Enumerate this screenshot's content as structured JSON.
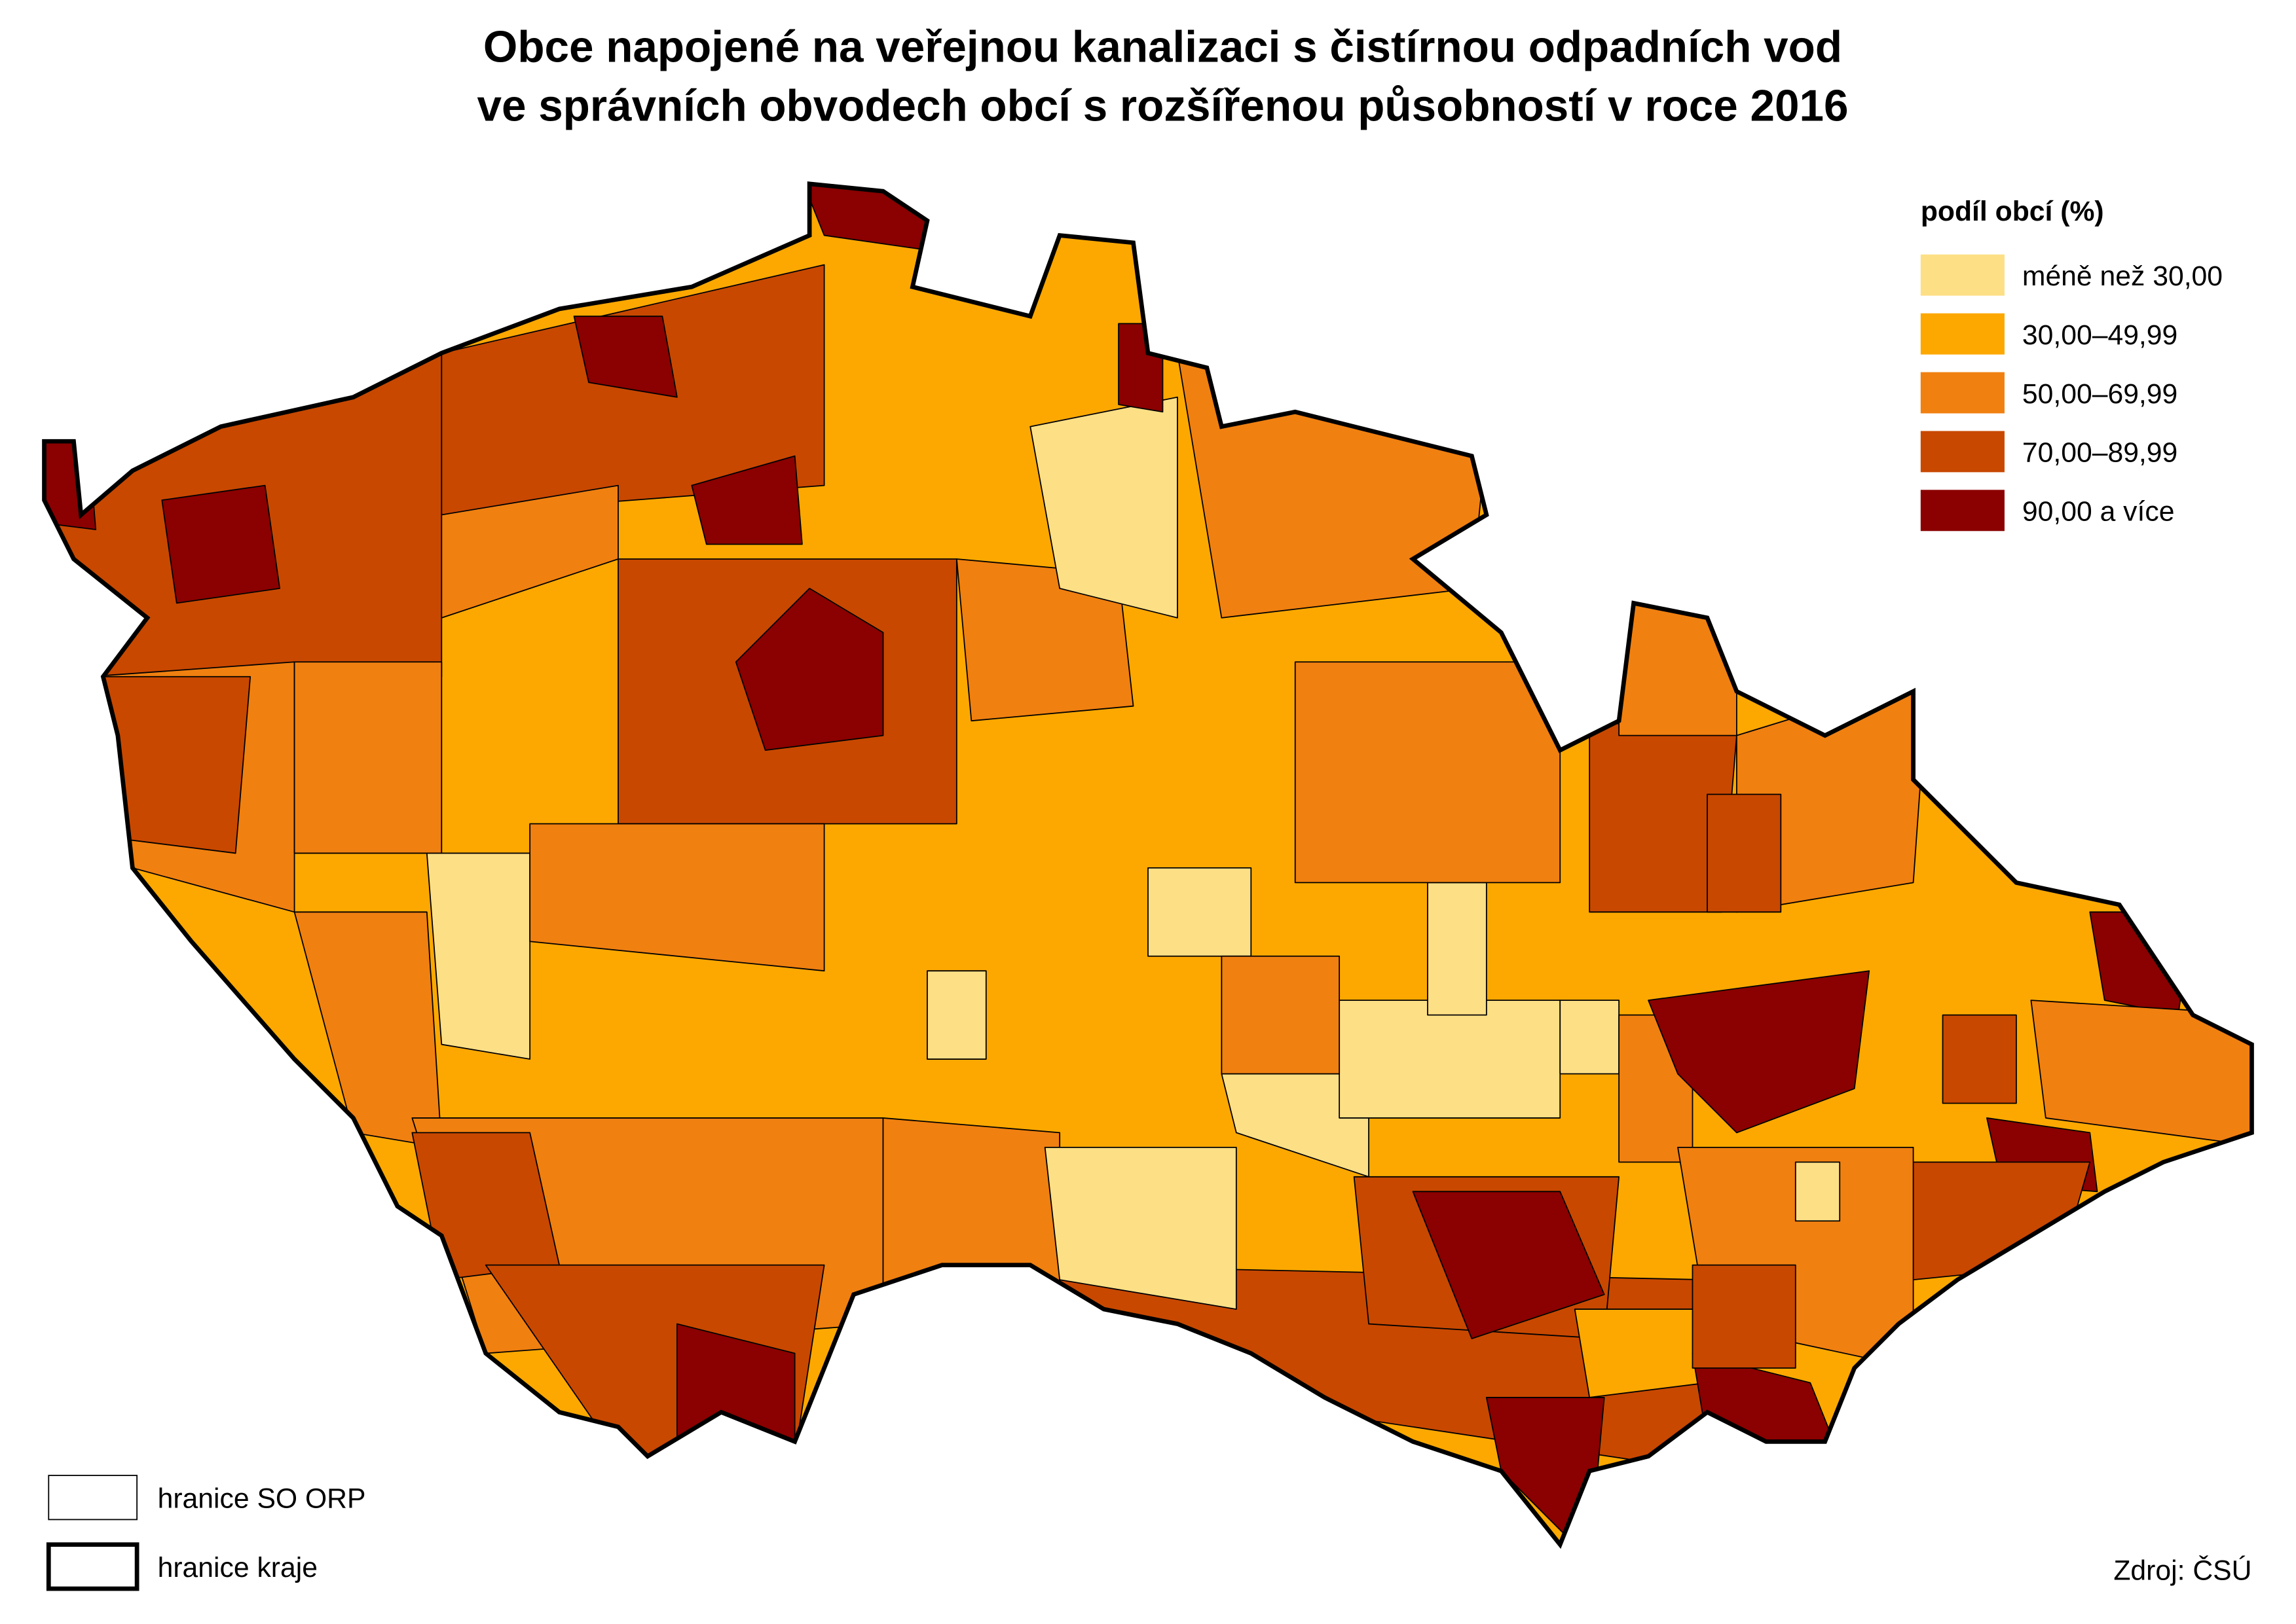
{
  "title": [
    "Obce napojené na veřejnou kanalizaci s čistírnou odpadních vod",
    "ve správních obvodech obcí s rozšířenou působností v roce 2016"
  ],
  "legend": {
    "title": "podíl obcí (%)",
    "items": [
      {
        "label": "méně než 30,00",
        "color": "#fddf85"
      },
      {
        "label": "30,00–49,99",
        "color": "#fca800"
      },
      {
        "label": "50,00–69,99",
        "color": "#f08010"
      },
      {
        "label": "70,00–89,99",
        "color": "#c84800"
      },
      {
        "label": "90,00 a více",
        "color": "#8b0000"
      }
    ]
  },
  "boundaries": [
    {
      "label": "hranice SO ORP"
    },
    {
      "label": "hranice kraje"
    }
  ],
  "source": "Zdroj: ČSÚ"
}
